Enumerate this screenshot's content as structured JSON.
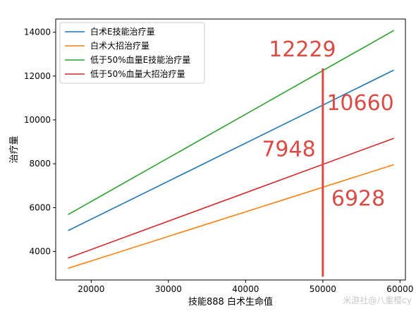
{
  "chart_data": {
    "type": "line",
    "title": "",
    "xlabel": "技能888 白术生命值",
    "ylabel": "治疗量",
    "xlim": [
      15400,
      60700
    ],
    "ylim": [
      2700,
      14600
    ],
    "xticks": [
      20000,
      30000,
      40000,
      50000,
      60000
    ],
    "yticks": [
      4000,
      6000,
      8000,
      10000,
      12000,
      14000
    ],
    "grid": false,
    "legend_position": "top-left",
    "series": [
      {
        "name": "白术E技能治疗量",
        "color": "#1f77b4",
        "x": [
          17000,
          59200
        ],
        "y": [
          4950,
          12270
        ]
      },
      {
        "name": "白术大招治疗量",
        "color": "#ff7f0e",
        "x": [
          17000,
          59200
        ],
        "y": [
          3230,
          7960
        ]
      },
      {
        "name": "低于50%血量E技能治疗量",
        "color": "#2ca02c",
        "x": [
          17000,
          59200
        ],
        "y": [
          5680,
          14080
        ]
      },
      {
        "name": "低于50%血量大招治疗量",
        "color": "#d62728",
        "x": [
          17000,
          59200
        ],
        "y": [
          3700,
          9160
        ]
      }
    ],
    "marker_line": {
      "x": 50000,
      "y_from": 2850,
      "y_to": 12350,
      "color": "#d94b45"
    },
    "annotations": [
      {
        "text": "12229",
        "x": 43000,
        "y": 12900
      },
      {
        "text": "10660",
        "x": 50500,
        "y": 10450
      },
      {
        "text": "7948",
        "x": 42100,
        "y": 8350
      },
      {
        "text": "6928",
        "x": 51100,
        "y": 6100
      }
    ]
  },
  "watermark": "米游社@八重樱cy"
}
